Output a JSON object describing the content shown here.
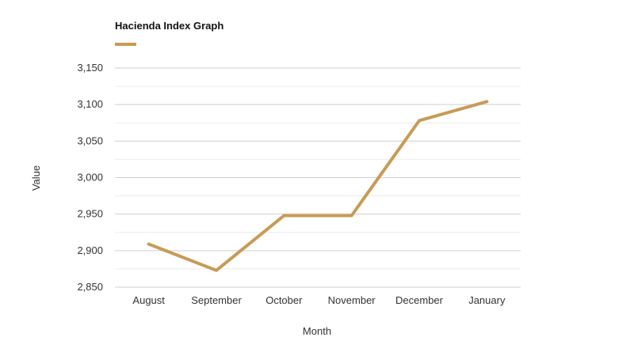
{
  "chart_data": {
    "type": "line",
    "title": "",
    "xlabel": "Month",
    "ylabel": "Value",
    "categories": [
      "August",
      "September",
      "October",
      "November",
      "December",
      "January"
    ],
    "series": [
      {
        "name": "Hacienda Index Graph",
        "color": "#c89b55",
        "values": [
          2909,
          2873,
          2948,
          2948,
          3078,
          3104
        ]
      }
    ],
    "ylim": [
      2850,
      3150
    ],
    "yticks": [
      2850,
      2900,
      2950,
      3000,
      3050,
      3100,
      3150
    ],
    "ytick_labels": [
      "2,850",
      "2,900",
      "2,950",
      "3,000",
      "3,050",
      "3,100",
      "3,150"
    ],
    "grid": true,
    "legend_position": "top-left"
  }
}
